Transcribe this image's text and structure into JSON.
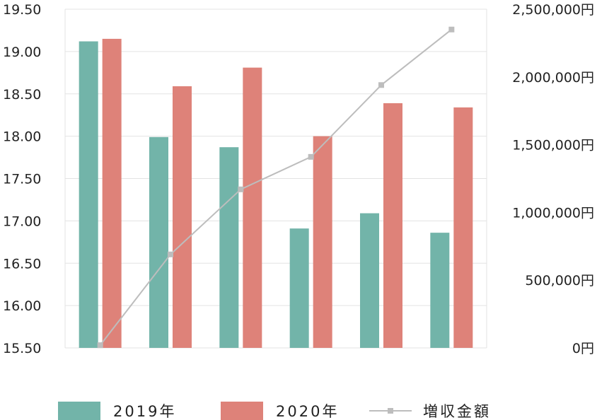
{
  "chart_data": {
    "type": "bar",
    "categories": [
      "",
      "",
      "",
      "",
      "",
      ""
    ],
    "series": [
      {
        "name": "2019年",
        "kind": "bar",
        "axis": "left",
        "color": "#72b4a9",
        "values": [
          19.12,
          17.99,
          17.87,
          16.91,
          17.09,
          16.86
        ]
      },
      {
        "name": "2020年",
        "kind": "bar",
        "axis": "left",
        "color": "#de8279",
        "values": [
          19.15,
          18.59,
          18.81,
          18.0,
          18.39,
          18.34
        ]
      },
      {
        "name": "増収金額",
        "kind": "line",
        "axis": "right",
        "color": "#bdbdbd",
        "values": [
          20000,
          690000,
          1170000,
          1410000,
          1940000,
          2350000
        ]
      }
    ],
    "y_left": {
      "ylim": [
        15.5,
        19.5
      ],
      "ticks": [
        "15.50",
        "16.00",
        "16.50",
        "17.00",
        "17.50",
        "18.00",
        "18.50",
        "19.00",
        "19.50"
      ]
    },
    "y_right": {
      "ylim": [
        0,
        2500000
      ],
      "ticks": [
        "0円",
        "500,000円",
        "1,000,000円",
        "1,500,000円",
        "2,000,000円",
        "2,500,000円"
      ]
    },
    "grid": true,
    "legend_position": "bottom"
  }
}
